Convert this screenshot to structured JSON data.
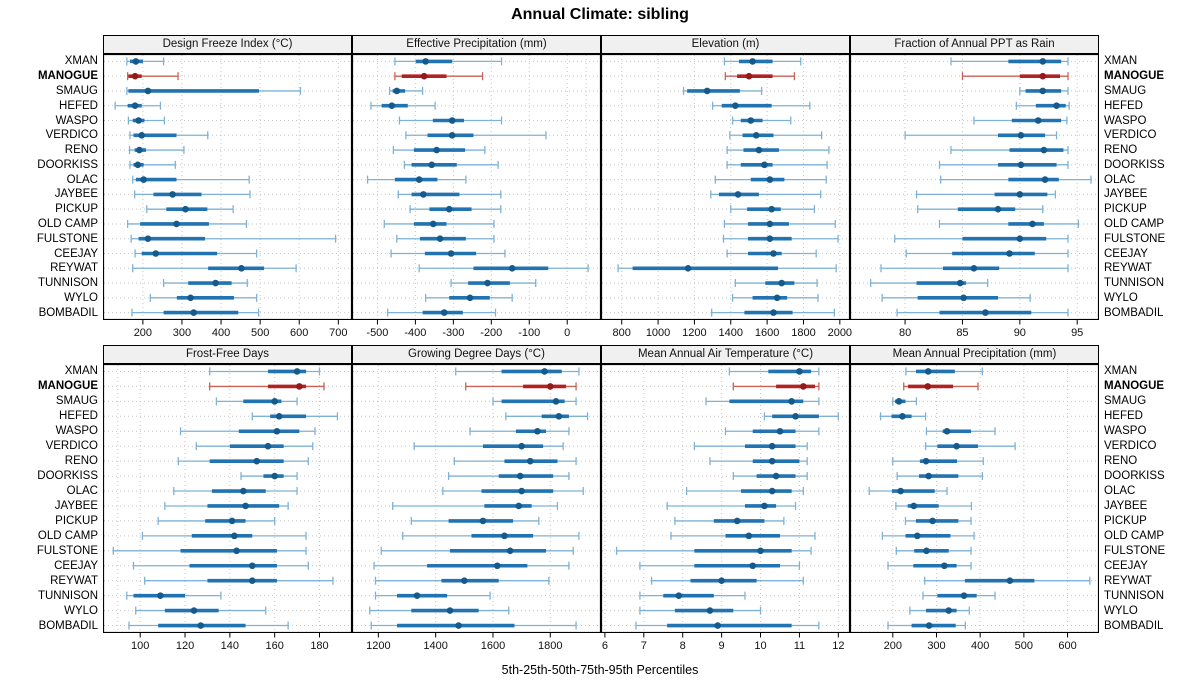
{
  "chart_data": {
    "type": "percentile-dotplot-trellis",
    "title": "Annual Climate: sibling",
    "footer_label": "5th-25th-50th-75th-95th Percentiles",
    "percentiles": [
      5,
      25,
      50,
      75,
      95
    ],
    "legend_position": "bottom-caption",
    "grid": "dotted",
    "stations": [
      "XMAN",
      "MANOGUE",
      "SMAUG",
      "HEFED",
      "WASPO",
      "VERDICO",
      "RENO",
      "DOORKISS",
      "OLAC",
      "JAYBEE",
      "PICKUP",
      "OLD CAMP",
      "FULSTONE",
      "CEEJAY",
      "REYWAT",
      "TUNNISON",
      "WYLO",
      "BOMBADIL"
    ],
    "highlight_station": "MANOGUE",
    "colors": {
      "normal": {
        "line": "#7fb2d6",
        "box": "#2173b2",
        "dot": "#155a8a"
      },
      "highlight": {
        "line": "#c96257",
        "box": "#b22222",
        "dot": "#921a1a"
      },
      "grid": "#c6c6c6",
      "header_bg": "#f0f0f0",
      "panel_border": "#000000",
      "text": "#000000"
    },
    "panels": [
      {
        "title": "Design Freeze Index (°C)",
        "grid_row": 0,
        "grid_col": 0,
        "range": [
          98,
          735
        ],
        "ticks": [
          200,
          300,
          400,
          500,
          600,
          700
        ],
        "minor_ticks": [],
        "values": [
          [
            159,
            167,
            182,
            200,
            253
          ],
          [
            161,
            163,
            180,
            197,
            290
          ],
          [
            159,
            163,
            213,
            497,
            603
          ],
          [
            129,
            161,
            180,
            197,
            245
          ],
          [
            163,
            174,
            189,
            204,
            255
          ],
          [
            167,
            176,
            197,
            286,
            366
          ],
          [
            166,
            179,
            191,
            208,
            305
          ],
          [
            167,
            176,
            187,
            202,
            283
          ],
          [
            174,
            182,
            202,
            286,
            472
          ],
          [
            179,
            227,
            276,
            350,
            474
          ],
          [
            210,
            260,
            309,
            365,
            431
          ],
          [
            161,
            193,
            286,
            369,
            465
          ],
          [
            170,
            189,
            213,
            359,
            693
          ],
          [
            180,
            197,
            233,
            390,
            491
          ],
          [
            174,
            367,
            452,
            510,
            592
          ],
          [
            253,
            316,
            386,
            427,
            467
          ],
          [
            219,
            287,
            322,
            433,
            491
          ],
          [
            172,
            253,
            330,
            444,
            496
          ]
        ]
      },
      {
        "title": "Effective Precipitation (mm)",
        "grid_row": 0,
        "grid_col": 1,
        "range": [
          -567,
          89
        ],
        "ticks": [
          -500,
          -400,
          -300,
          -200,
          -100,
          0
        ],
        "minor_ticks": [
          50
        ],
        "values": [
          [
            -454,
            -399,
            -373,
            -303,
            -173
          ],
          [
            -454,
            -436,
            -377,
            -318,
            -223
          ],
          [
            -468,
            -460,
            -449,
            -427,
            -381
          ],
          [
            -517,
            -489,
            -462,
            -420,
            -348
          ],
          [
            -442,
            -354,
            -303,
            -272,
            -173
          ],
          [
            -425,
            -368,
            -303,
            -247,
            -56
          ],
          [
            -458,
            -404,
            -344,
            -269,
            -217
          ],
          [
            -429,
            -410,
            -357,
            -291,
            -182
          ],
          [
            -526,
            -454,
            -390,
            -342,
            -267
          ],
          [
            -445,
            -410,
            -379,
            -284,
            -175
          ],
          [
            -414,
            -363,
            -311,
            -252,
            -175
          ],
          [
            -482,
            -404,
            -353,
            -318,
            -193
          ],
          [
            -449,
            -388,
            -335,
            -267,
            -193
          ],
          [
            -464,
            -375,
            -306,
            -240,
            -164
          ],
          [
            -390,
            -247,
            -145,
            -50,
            55
          ],
          [
            -306,
            -261,
            -210,
            -151,
            -83
          ],
          [
            -373,
            -311,
            -256,
            -204,
            -145
          ],
          [
            -473,
            -381,
            -324,
            -275,
            -189
          ]
        ]
      },
      {
        "title": "Elevation (m)",
        "grid_row": 0,
        "grid_col": 2,
        "range": [
          686,
          2056
        ],
        "ticks": [
          800,
          1000,
          1200,
          1400,
          1600,
          1800,
          2000
        ],
        "minor_ticks": [],
        "values": [
          [
            1365,
            1445,
            1520,
            1630,
            1785
          ],
          [
            1370,
            1435,
            1500,
            1630,
            1750
          ],
          [
            1140,
            1160,
            1270,
            1450,
            1570
          ],
          [
            1300,
            1350,
            1425,
            1625,
            1835
          ],
          [
            1410,
            1455,
            1510,
            1575,
            1730
          ],
          [
            1395,
            1465,
            1540,
            1635,
            1900
          ],
          [
            1380,
            1470,
            1555,
            1665,
            1940
          ],
          [
            1380,
            1455,
            1585,
            1630,
            1930
          ],
          [
            1315,
            1510,
            1615,
            1695,
            1925
          ],
          [
            1290,
            1335,
            1440,
            1555,
            1895
          ],
          [
            1400,
            1490,
            1625,
            1675,
            1860
          ],
          [
            1365,
            1495,
            1615,
            1720,
            1975
          ],
          [
            1360,
            1495,
            1615,
            1735,
            1990
          ],
          [
            1380,
            1495,
            1635,
            1680,
            1870
          ],
          [
            780,
            860,
            1165,
            1660,
            1980
          ],
          [
            1425,
            1590,
            1680,
            1750,
            1875
          ],
          [
            1410,
            1520,
            1655,
            1710,
            1880
          ],
          [
            1295,
            1475,
            1635,
            1740,
            1970
          ]
        ]
      },
      {
        "title": "Fraction of Annual PPT as Rain",
        "grid_row": 0,
        "grid_col": 3,
        "range": [
          75.2,
          96.9
        ],
        "ticks": [
          80,
          85,
          90,
          95
        ],
        "minor_ticks": [],
        "values": [
          [
            84,
            89,
            92,
            93.6,
            94.2
          ],
          [
            85,
            90,
            92,
            93.5,
            94.2
          ],
          [
            90,
            90.5,
            92,
            93.6,
            94.2
          ],
          [
            89.7,
            91.4,
            93.2,
            94,
            94.3
          ],
          [
            86,
            89.3,
            91.6,
            93.6,
            94.1
          ],
          [
            80,
            88.1,
            90.1,
            92.2,
            93.2
          ],
          [
            84,
            89.1,
            92.1,
            93.8,
            94.2
          ],
          [
            83,
            88.1,
            90.1,
            93.2,
            94.2
          ],
          [
            83.1,
            89,
            92.2,
            93.4,
            96.2
          ],
          [
            81,
            87.8,
            90,
            92.4,
            93.1
          ],
          [
            81.1,
            84.6,
            88.1,
            89.6,
            92
          ],
          [
            83,
            89,
            91.1,
            92.1,
            95.1
          ],
          [
            79.1,
            85,
            90,
            92.3,
            94.2
          ],
          [
            80.1,
            84.1,
            89.1,
            91.3,
            94.2
          ],
          [
            77.9,
            83.3,
            86,
            88.2,
            94.2
          ],
          [
            77,
            81,
            84.8,
            85.3,
            87.2
          ],
          [
            78,
            81.1,
            85.1,
            88.1,
            90.9
          ],
          [
            79.3,
            83,
            87,
            91,
            94.2
          ]
        ]
      },
      {
        "title": "Frost-Free Days",
        "grid_row": 1,
        "grid_col": 0,
        "range": [
          83.4,
          194.5
        ],
        "ticks": [
          100,
          120,
          140,
          160,
          180
        ],
        "minor_ticks": [
          90
        ],
        "values": [
          [
            131,
            157,
            170,
            174,
            180
          ],
          [
            131,
            157,
            171,
            174,
            182
          ],
          [
            134,
            146,
            160,
            163,
            170
          ],
          [
            150,
            158,
            162,
            174,
            188
          ],
          [
            118,
            144,
            161,
            171,
            178
          ],
          [
            125,
            140,
            157,
            164,
            177
          ],
          [
            117,
            131,
            152,
            164,
            175
          ],
          [
            145,
            155,
            160,
            164,
            170
          ],
          [
            115,
            132,
            146,
            156,
            170
          ],
          [
            111,
            130,
            147,
            162,
            166
          ],
          [
            108,
            129,
            141,
            147,
            160
          ],
          [
            101,
            123,
            142,
            150,
            174
          ],
          [
            88,
            118,
            143,
            161,
            174
          ],
          [
            97,
            122,
            150,
            161,
            175
          ],
          [
            102,
            130,
            150,
            161,
            186
          ],
          [
            94,
            97,
            109,
            120,
            136
          ],
          [
            98,
            111,
            124,
            135,
            156
          ],
          [
            95,
            108,
            127,
            147,
            166
          ]
        ]
      },
      {
        "title": "Growing Degree Days (°C)",
        "grid_row": 1,
        "grid_col": 1,
        "range": [
          1108,
          1977
        ],
        "ticks": [
          1200,
          1400,
          1600,
          1800
        ],
        "minor_ticks": [],
        "values": [
          [
            1470,
            1630,
            1780,
            1840,
            1900
          ],
          [
            1505,
            1705,
            1800,
            1855,
            1890
          ],
          [
            1600,
            1630,
            1820,
            1850,
            1890
          ],
          [
            1645,
            1770,
            1830,
            1865,
            1930
          ],
          [
            1520,
            1680,
            1755,
            1785,
            1865
          ],
          [
            1325,
            1565,
            1700,
            1775,
            1845
          ],
          [
            1465,
            1640,
            1730,
            1825,
            1890
          ],
          [
            1445,
            1620,
            1695,
            1810,
            1865
          ],
          [
            1425,
            1560,
            1700,
            1810,
            1915
          ],
          [
            1250,
            1570,
            1690,
            1735,
            1825
          ],
          [
            1315,
            1445,
            1565,
            1670,
            1760
          ],
          [
            1285,
            1525,
            1640,
            1740,
            1900
          ],
          [
            1210,
            1450,
            1660,
            1785,
            1880
          ],
          [
            1185,
            1370,
            1615,
            1720,
            1865
          ],
          [
            1190,
            1420,
            1500,
            1620,
            1795
          ],
          [
            1190,
            1265,
            1335,
            1440,
            1590
          ],
          [
            1170,
            1315,
            1450,
            1550,
            1655
          ],
          [
            1175,
            1265,
            1480,
            1675,
            1890
          ]
        ]
      },
      {
        "title": "Mean Annual Air Temperature (°C)",
        "grid_row": 1,
        "grid_col": 2,
        "range": [
          5.9,
          12.3
        ],
        "ticks": [
          6,
          7,
          8,
          9,
          10,
          11,
          12
        ],
        "minor_ticks": [],
        "values": [
          [
            9.2,
            10.2,
            11.0,
            11.3,
            11.5
          ],
          [
            9.3,
            10.4,
            11.1,
            11.4,
            11.5
          ],
          [
            8.6,
            9.2,
            10.8,
            11.1,
            11.5
          ],
          [
            10.1,
            10.3,
            10.9,
            11.5,
            12.0
          ],
          [
            9.1,
            9.8,
            10.5,
            10.9,
            11.5
          ],
          [
            8.3,
            9.6,
            10.3,
            10.9,
            11.2
          ],
          [
            8.7,
            9.8,
            10.3,
            11.0,
            11.2
          ],
          [
            9.3,
            9.9,
            10.4,
            10.9,
            11.2
          ],
          [
            8.1,
            9.5,
            10.3,
            10.8,
            11.1
          ],
          [
            7.6,
            9.6,
            10.1,
            10.4,
            10.9
          ],
          [
            7.8,
            8.8,
            9.4,
            10.1,
            10.6
          ],
          [
            7.7,
            9.1,
            9.7,
            10.5,
            11.4
          ],
          [
            6.3,
            8.3,
            10.0,
            10.8,
            11.3
          ],
          [
            6.9,
            8.3,
            9.8,
            10.5,
            11.0
          ],
          [
            7.2,
            8.2,
            9.0,
            9.9,
            11.1
          ],
          [
            6.9,
            7.5,
            7.9,
            8.8,
            9.6
          ],
          [
            6.9,
            7.8,
            8.7,
            9.3,
            10.0
          ],
          [
            6.8,
            7.6,
            8.9,
            10.8,
            11.5
          ]
        ]
      },
      {
        "title": "Mean Annual Precipitation (mm)",
        "grid_row": 1,
        "grid_col": 3,
        "range": [
          102,
          672
        ],
        "ticks": [
          200,
          300,
          400,
          500,
          600
        ],
        "minor_ticks": [],
        "values": [
          [
            230,
            253,
            281,
            342,
            405
          ],
          [
            225,
            235,
            280,
            338,
            395
          ],
          [
            200,
            205,
            214,
            229,
            254
          ],
          [
            172,
            197,
            222,
            243,
            275
          ],
          [
            277,
            314,
            324,
            379,
            434
          ],
          [
            275,
            302,
            346,
            395,
            480
          ],
          [
            200,
            262,
            276,
            347,
            407
          ],
          [
            210,
            260,
            282,
            350,
            405
          ],
          [
            146,
            198,
            218,
            296,
            324
          ],
          [
            207,
            234,
            248,
            305,
            380
          ],
          [
            229,
            253,
            291,
            350,
            379
          ],
          [
            176,
            229,
            256,
            332,
            386
          ],
          [
            208,
            249,
            277,
            328,
            379
          ],
          [
            189,
            247,
            318,
            346,
            379
          ],
          [
            273,
            365,
            468,
            524,
            651
          ],
          [
            269,
            302,
            363,
            392,
            434
          ],
          [
            239,
            276,
            328,
            346,
            375
          ],
          [
            189,
            243,
            283,
            344,
            366
          ]
        ]
      }
    ]
  }
}
